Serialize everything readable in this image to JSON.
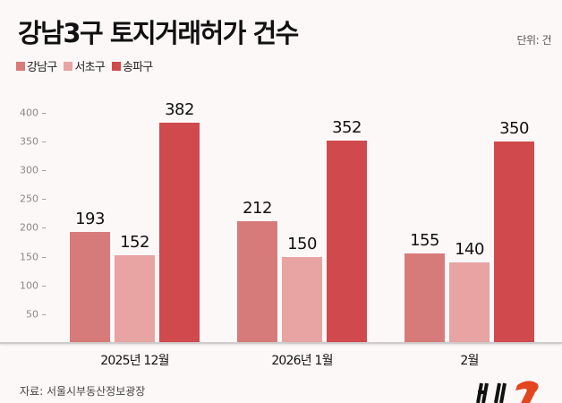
{
  "header": {
    "title": "강남3구 토지거래허가 건수",
    "unit": "단위: 건"
  },
  "legend": [
    {
      "label": "강남구",
      "color": "#d77a7a"
    },
    {
      "label": "서초구",
      "color": "#e8a3a3"
    },
    {
      "label": "송파구",
      "color": "#d0494d"
    }
  ],
  "footer": {
    "source": "자료: 서울시부동산정보광장"
  },
  "chart_data": {
    "type": "bar",
    "title": "강남3구 토지거래허가 건수",
    "unit": "단위: 건",
    "categories": [
      "2025년 12월",
      "2026년 1월",
      "2월"
    ],
    "series": [
      {
        "name": "강남구",
        "values": [
          193,
          212,
          155
        ],
        "color": "#d77a7a"
      },
      {
        "name": "서초구",
        "values": [
          152,
          150,
          140
        ],
        "color": "#e8a3a3"
      },
      {
        "name": "송파구",
        "values": [
          382,
          352,
          350
        ],
        "color": "#d0494d"
      }
    ],
    "yticks": [
      50,
      100,
      150,
      200,
      250,
      300,
      350,
      400
    ],
    "ylim": [
      0,
      400
    ],
    "xlabel": "",
    "ylabel": "",
    "grid": false,
    "legend_position": "top-left"
  }
}
